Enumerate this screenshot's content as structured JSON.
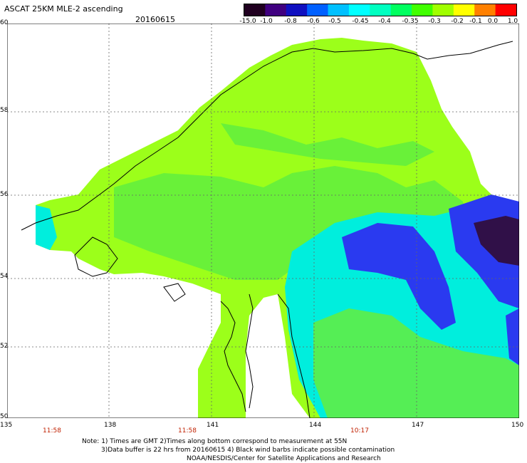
{
  "title": "ASCAT 25KM MLE-2 ascending",
  "date": "20160615",
  "colorbar": {
    "labels": [
      "-15.0",
      "-1.0",
      "-0.8",
      "-0.6",
      "-0.5",
      "-0.45",
      "-0.4",
      "-0.35",
      "-0.3",
      "-0.2",
      "-0.1",
      "0.0",
      "1.0"
    ],
    "colors": [
      "#200020",
      "#400080",
      "#1010c0",
      "#0060ff",
      "#00c0ff",
      "#00ffff",
      "#00ffc0",
      "#00ff60",
      "#40ff00",
      "#a0ff00",
      "#ffff00",
      "#ff8000",
      "#ff0000"
    ]
  },
  "lon_ticks": [
    "135",
    "138",
    "141",
    "144",
    "147",
    "150"
  ],
  "lat_ticks": [
    "60",
    "58",
    "56",
    "54",
    "52",
    "50"
  ],
  "pass_times": [
    "11:58",
    "11:58",
    "10:17"
  ],
  "notes": {
    "line1": "Note: 1) Times are GMT 2)Times along bottom correspond to measurement at 55N",
    "line2": "3)Data buffer is 22 hrs from 20160615 4) Black wind barbs indicate possible contamination",
    "line3": "NOAA/NESDIS/Center for Satellite Applications and Research"
  },
  "colors": {
    "land_green": "#99ff00",
    "mid_green": "#66f03a",
    "cyan": "#00f0f0",
    "blue": "#2020d0",
    "dark": "#300040"
  }
}
